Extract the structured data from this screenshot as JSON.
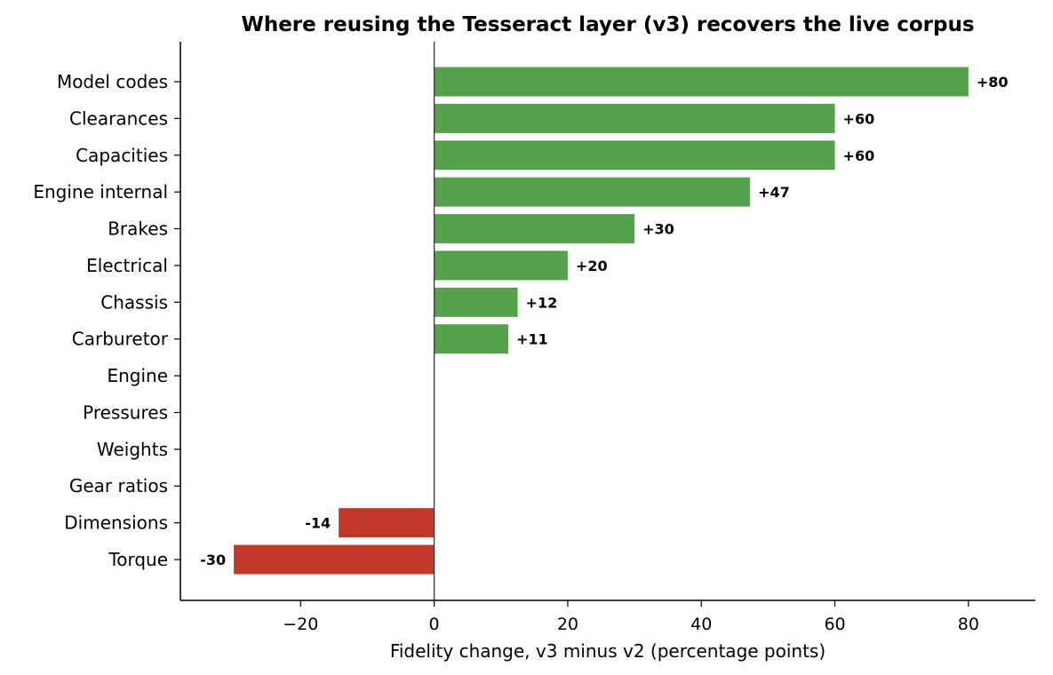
{
  "chart_data": {
    "type": "bar",
    "orientation": "horizontal",
    "title": "Where reusing the Tesseract layer (v3) recovers the live corpus",
    "xlabel": "Fidelity change, v3 minus v2 (percentage points)",
    "ylabel": "",
    "xlim": [
      -38,
      90
    ],
    "xticks": [
      -20,
      0,
      20,
      40,
      60,
      80
    ],
    "xtick_labels": [
      "−20",
      "0",
      "20",
      "40",
      "60",
      "80"
    ],
    "grid": false,
    "categories": [
      "Model codes",
      "Clearances",
      "Capacities",
      "Engine internal",
      "Brakes",
      "Electrical",
      "Chassis",
      "Carburetor",
      "Engine",
      "Pressures",
      "Weights",
      "Gear ratios",
      "Dimensions",
      "Torque"
    ],
    "values": [
      80,
      60,
      60,
      47.3,
      30,
      20,
      12.5,
      11.1,
      0,
      0,
      0,
      0,
      -14.3,
      -30
    ],
    "data_labels": [
      "+80",
      "+60",
      "+60",
      "+47",
      "+30",
      "+20",
      "+12",
      "+11",
      "",
      "",
      "",
      "",
      "-14",
      "-30"
    ],
    "colors": {
      "positive": "#55a24c",
      "negative": "#c0392b"
    }
  }
}
